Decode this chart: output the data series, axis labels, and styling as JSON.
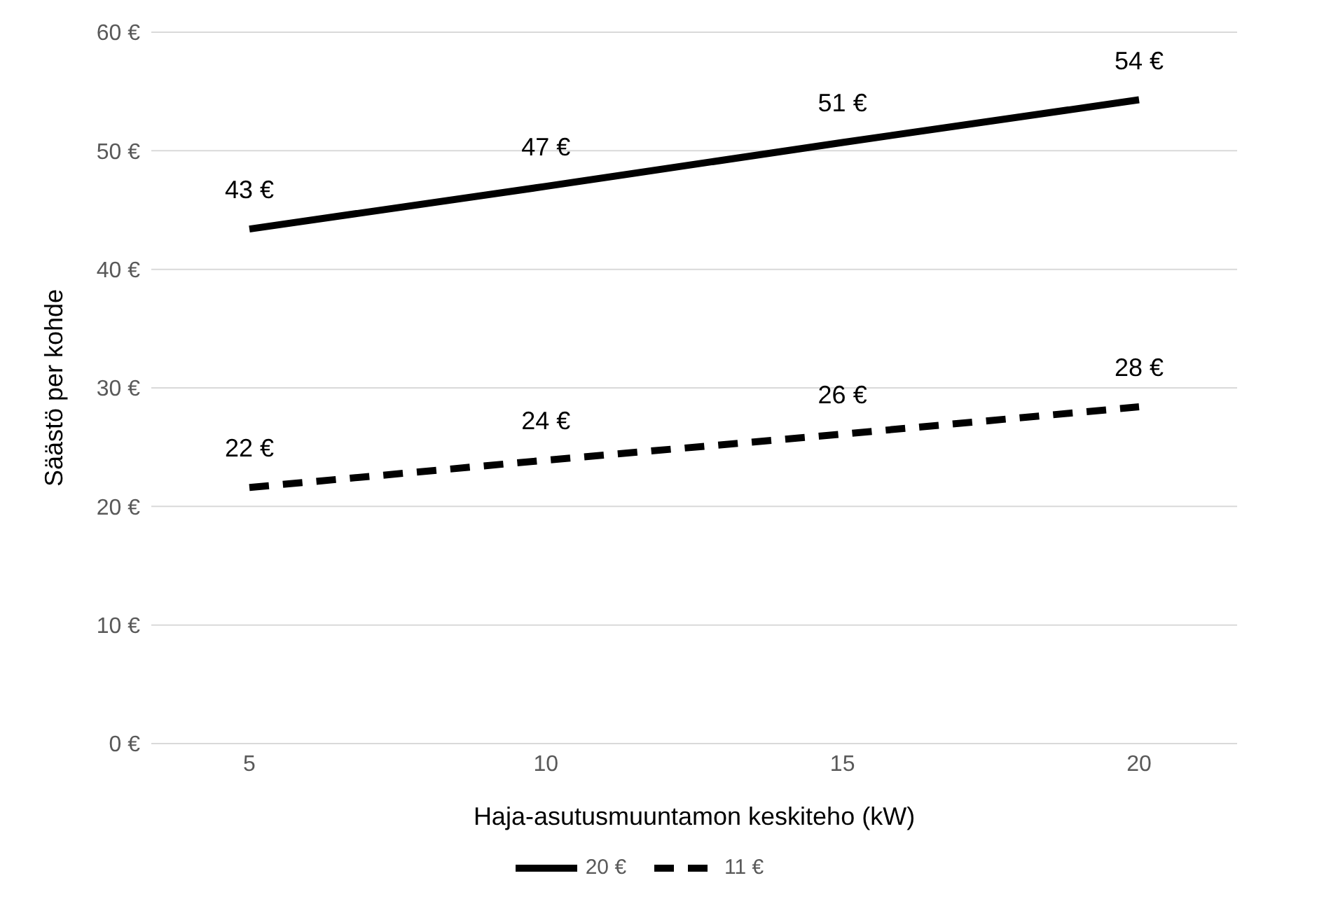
{
  "chart_data": {
    "type": "line",
    "xlabel": "Haja-asutusmuuntamon keskiteho (kW)",
    "ylabel": "Säästö per kohde",
    "categories": [
      "5",
      "10",
      "15",
      "20"
    ],
    "series": [
      {
        "name": "20 €",
        "color": "#000000",
        "line_style": "solid",
        "values": [
          43.4,
          47.0,
          50.7,
          54.3
        ],
        "value_labels": [
          "43 €",
          "47 €",
          "51 €",
          "54 €"
        ]
      },
      {
        "name": "11 €",
        "color": "#000000",
        "line_style": "dashed",
        "values": [
          21.6,
          23.9,
          26.1,
          28.4
        ],
        "value_labels": [
          "22 €",
          "24 €",
          "26 €",
          "28 €"
        ]
      }
    ],
    "ylim": [
      0,
      60
    ],
    "yticks": [
      {
        "value": 0,
        "label": "0 €"
      },
      {
        "value": 10,
        "label": "10 €"
      },
      {
        "value": 20,
        "label": "20 €"
      },
      {
        "value": 30,
        "label": "30 €"
      },
      {
        "value": 40,
        "label": "40 €"
      },
      {
        "value": 50,
        "label": "50 €"
      },
      {
        "value": 60,
        "label": "60 €"
      }
    ],
    "grid": "y",
    "legend": "bottom",
    "marker": "none"
  }
}
